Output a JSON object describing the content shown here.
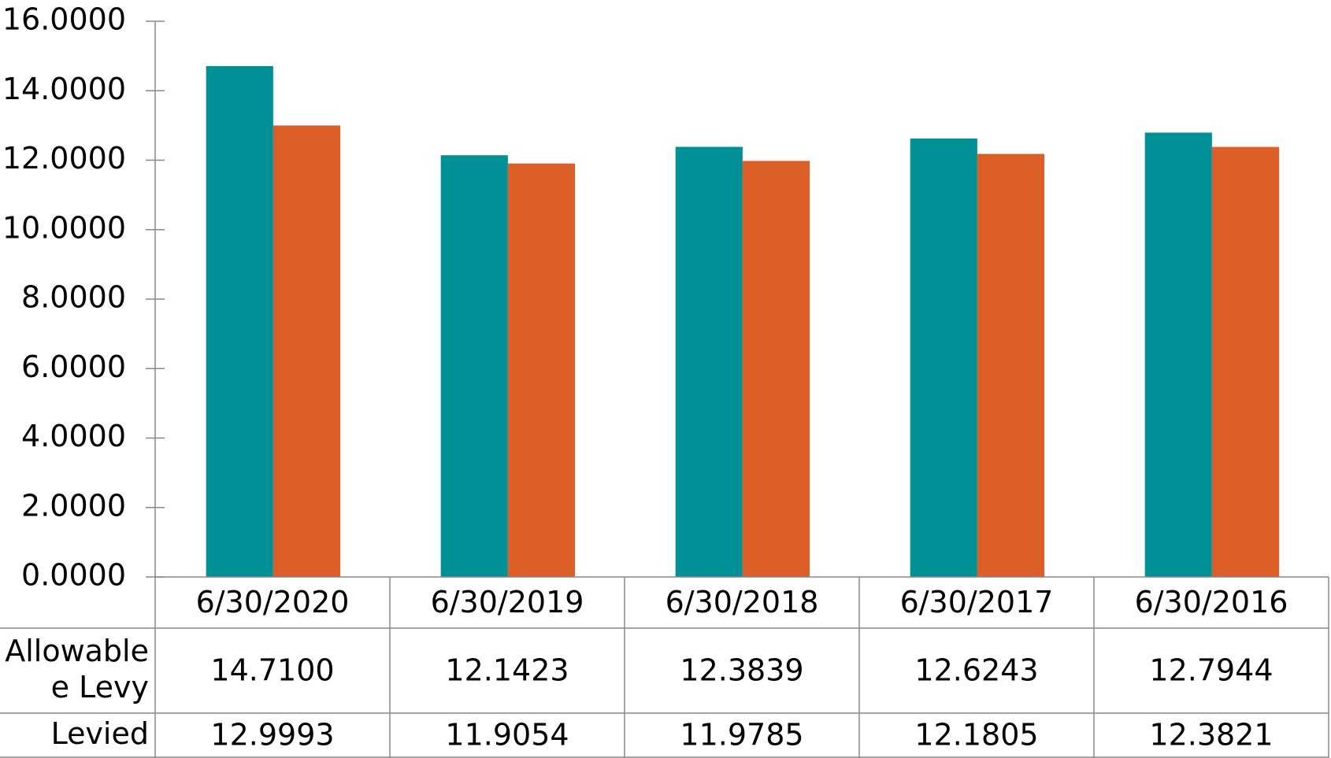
{
  "chart_data": {
    "type": "bar",
    "categories": [
      "6/30/2020",
      "6/30/2019",
      "6/30/2018",
      "6/30/2017",
      "6/30/2016"
    ],
    "series": [
      {
        "name": "Allowable\ne Levy",
        "color": "#009096",
        "values": [
          14.71,
          12.1423,
          12.3839,
          12.6243,
          12.7944
        ],
        "value_labels": [
          "14.7100",
          "12.1423",
          "12.3839",
          "12.6243",
          "12.7944"
        ]
      },
      {
        "name": "Levied",
        "color": "#dd5f28",
        "values": [
          12.9993,
          11.9054,
          11.9785,
          12.1805,
          12.3821
        ],
        "value_labels": [
          "12.9993",
          "11.9054",
          "11.9785",
          "12.1805",
          "12.3821"
        ]
      }
    ],
    "ylim": [
      0,
      16
    ],
    "yticks": [
      {
        "value": 0,
        "label": "0.0000"
      },
      {
        "value": 2,
        "label": "2.0000"
      },
      {
        "value": 4,
        "label": "4.0000"
      },
      {
        "value": 6,
        "label": "6.0000"
      },
      {
        "value": 8,
        "label": "8.0000"
      },
      {
        "value": 10,
        "label": "10.0000"
      },
      {
        "value": 12,
        "label": "12.0000"
      },
      {
        "value": 14,
        "label": "14.0000"
      },
      {
        "value": 16,
        "label": "16.0000"
      }
    ]
  }
}
